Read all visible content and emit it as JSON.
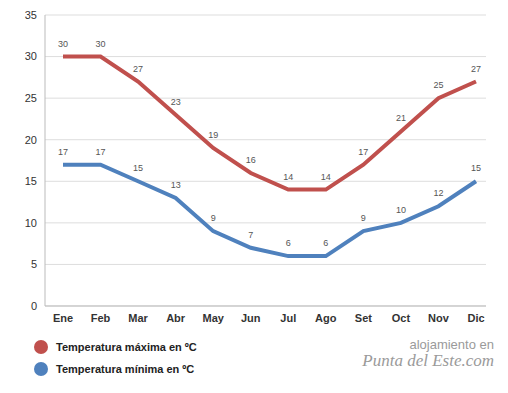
{
  "chart_data": {
    "type": "line",
    "categories": [
      "Ene",
      "Feb",
      "Mar",
      "Abr",
      "May",
      "Jun",
      "Jul",
      "Ago",
      "Set",
      "Oct",
      "Nov",
      "Dic"
    ],
    "series": [
      {
        "name": "Temperatura máxima en ºC",
        "color": "#c0504d",
        "values": [
          30,
          30,
          27,
          23,
          19,
          16,
          14,
          14,
          17,
          21,
          25,
          27
        ]
      },
      {
        "name": "Temperatura mínima en ºC",
        "color": "#4f81bd",
        "values": [
          17,
          17,
          15,
          13,
          9,
          7,
          6,
          6,
          9,
          10,
          12,
          15
        ]
      }
    ],
    "ylim": [
      0,
      35
    ],
    "yticks": [
      0,
      5,
      10,
      15,
      20,
      25,
      30,
      35
    ],
    "grid": true,
    "legend": "lower left",
    "data_labels": true,
    "marker": "none",
    "annotations": [
      "alojamiento en",
      "Punta del Este.com"
    ]
  }
}
